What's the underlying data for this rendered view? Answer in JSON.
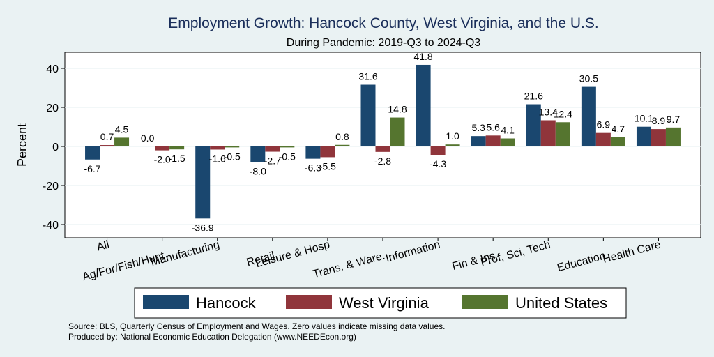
{
  "chart_data": {
    "type": "bar",
    "title": "Employment Growth: Hancock County, West Virginia, and the U.S.",
    "subtitle": "During Pandemic: 2019-Q3 to 2024-Q3",
    "ylabel": "Percent",
    "ylim": [
      -45,
      48
    ],
    "yticks": [
      40,
      20,
      0,
      -20,
      -40
    ],
    "grid": true,
    "legend_position": "bottom",
    "categories": [
      "All",
      "Ag/For/Fish/Hunt",
      "Manufacturing",
      "Retail",
      "Leisure & Hosp",
      "Trans. & Ware.",
      "Information",
      "Fin & Ins",
      "Prof, Sci, Tech",
      "Education",
      "Health Care"
    ],
    "series": [
      {
        "name": "Hancock",
        "color": "#1a476f",
        "values": [
          -6.7,
          0.0,
          -36.9,
          -8.0,
          -6.3,
          31.6,
          41.8,
          5.3,
          21.6,
          30.5,
          10.1
        ]
      },
      {
        "name": "West Virginia",
        "color": "#90353b",
        "values": [
          0.7,
          -2.0,
          -1.6,
          -2.7,
          -5.5,
          -2.8,
          -4.3,
          5.6,
          13.4,
          6.9,
          8.9
        ]
      },
      {
        "name": "United States",
        "color": "#55752f",
        "values": [
          4.5,
          -1.5,
          -0.5,
          -0.5,
          0.8,
          14.8,
          1.0,
          4.1,
          12.4,
          4.7,
          9.7
        ]
      }
    ],
    "data_labels": [
      [
        "-6.7",
        "0.0",
        "-36.9",
        "-8.0",
        "-6.3",
        "31.6",
        "41.8",
        "5.3",
        "21.6",
        "30.5",
        "10.1"
      ],
      [
        "0.7",
        "-2.0",
        "-1.6",
        "-2.7",
        "-5.5",
        "-2.8",
        "-4.3",
        "5.6",
        "13.4",
        "6.9",
        "8.9"
      ],
      [
        "4.5",
        "-1.5",
        "-0.5",
        "-0.5",
        "0.8",
        "14.8",
        "1.0",
        "4.1",
        "12.4",
        "4.7",
        "9.7"
      ]
    ],
    "notes": [
      "Source: BLS, Quarterly Census of Employment and Wages. Zero values indicate missing data values.",
      "Produced by: National Economic Education Delegation (www.NEEDEcon.org)"
    ]
  }
}
